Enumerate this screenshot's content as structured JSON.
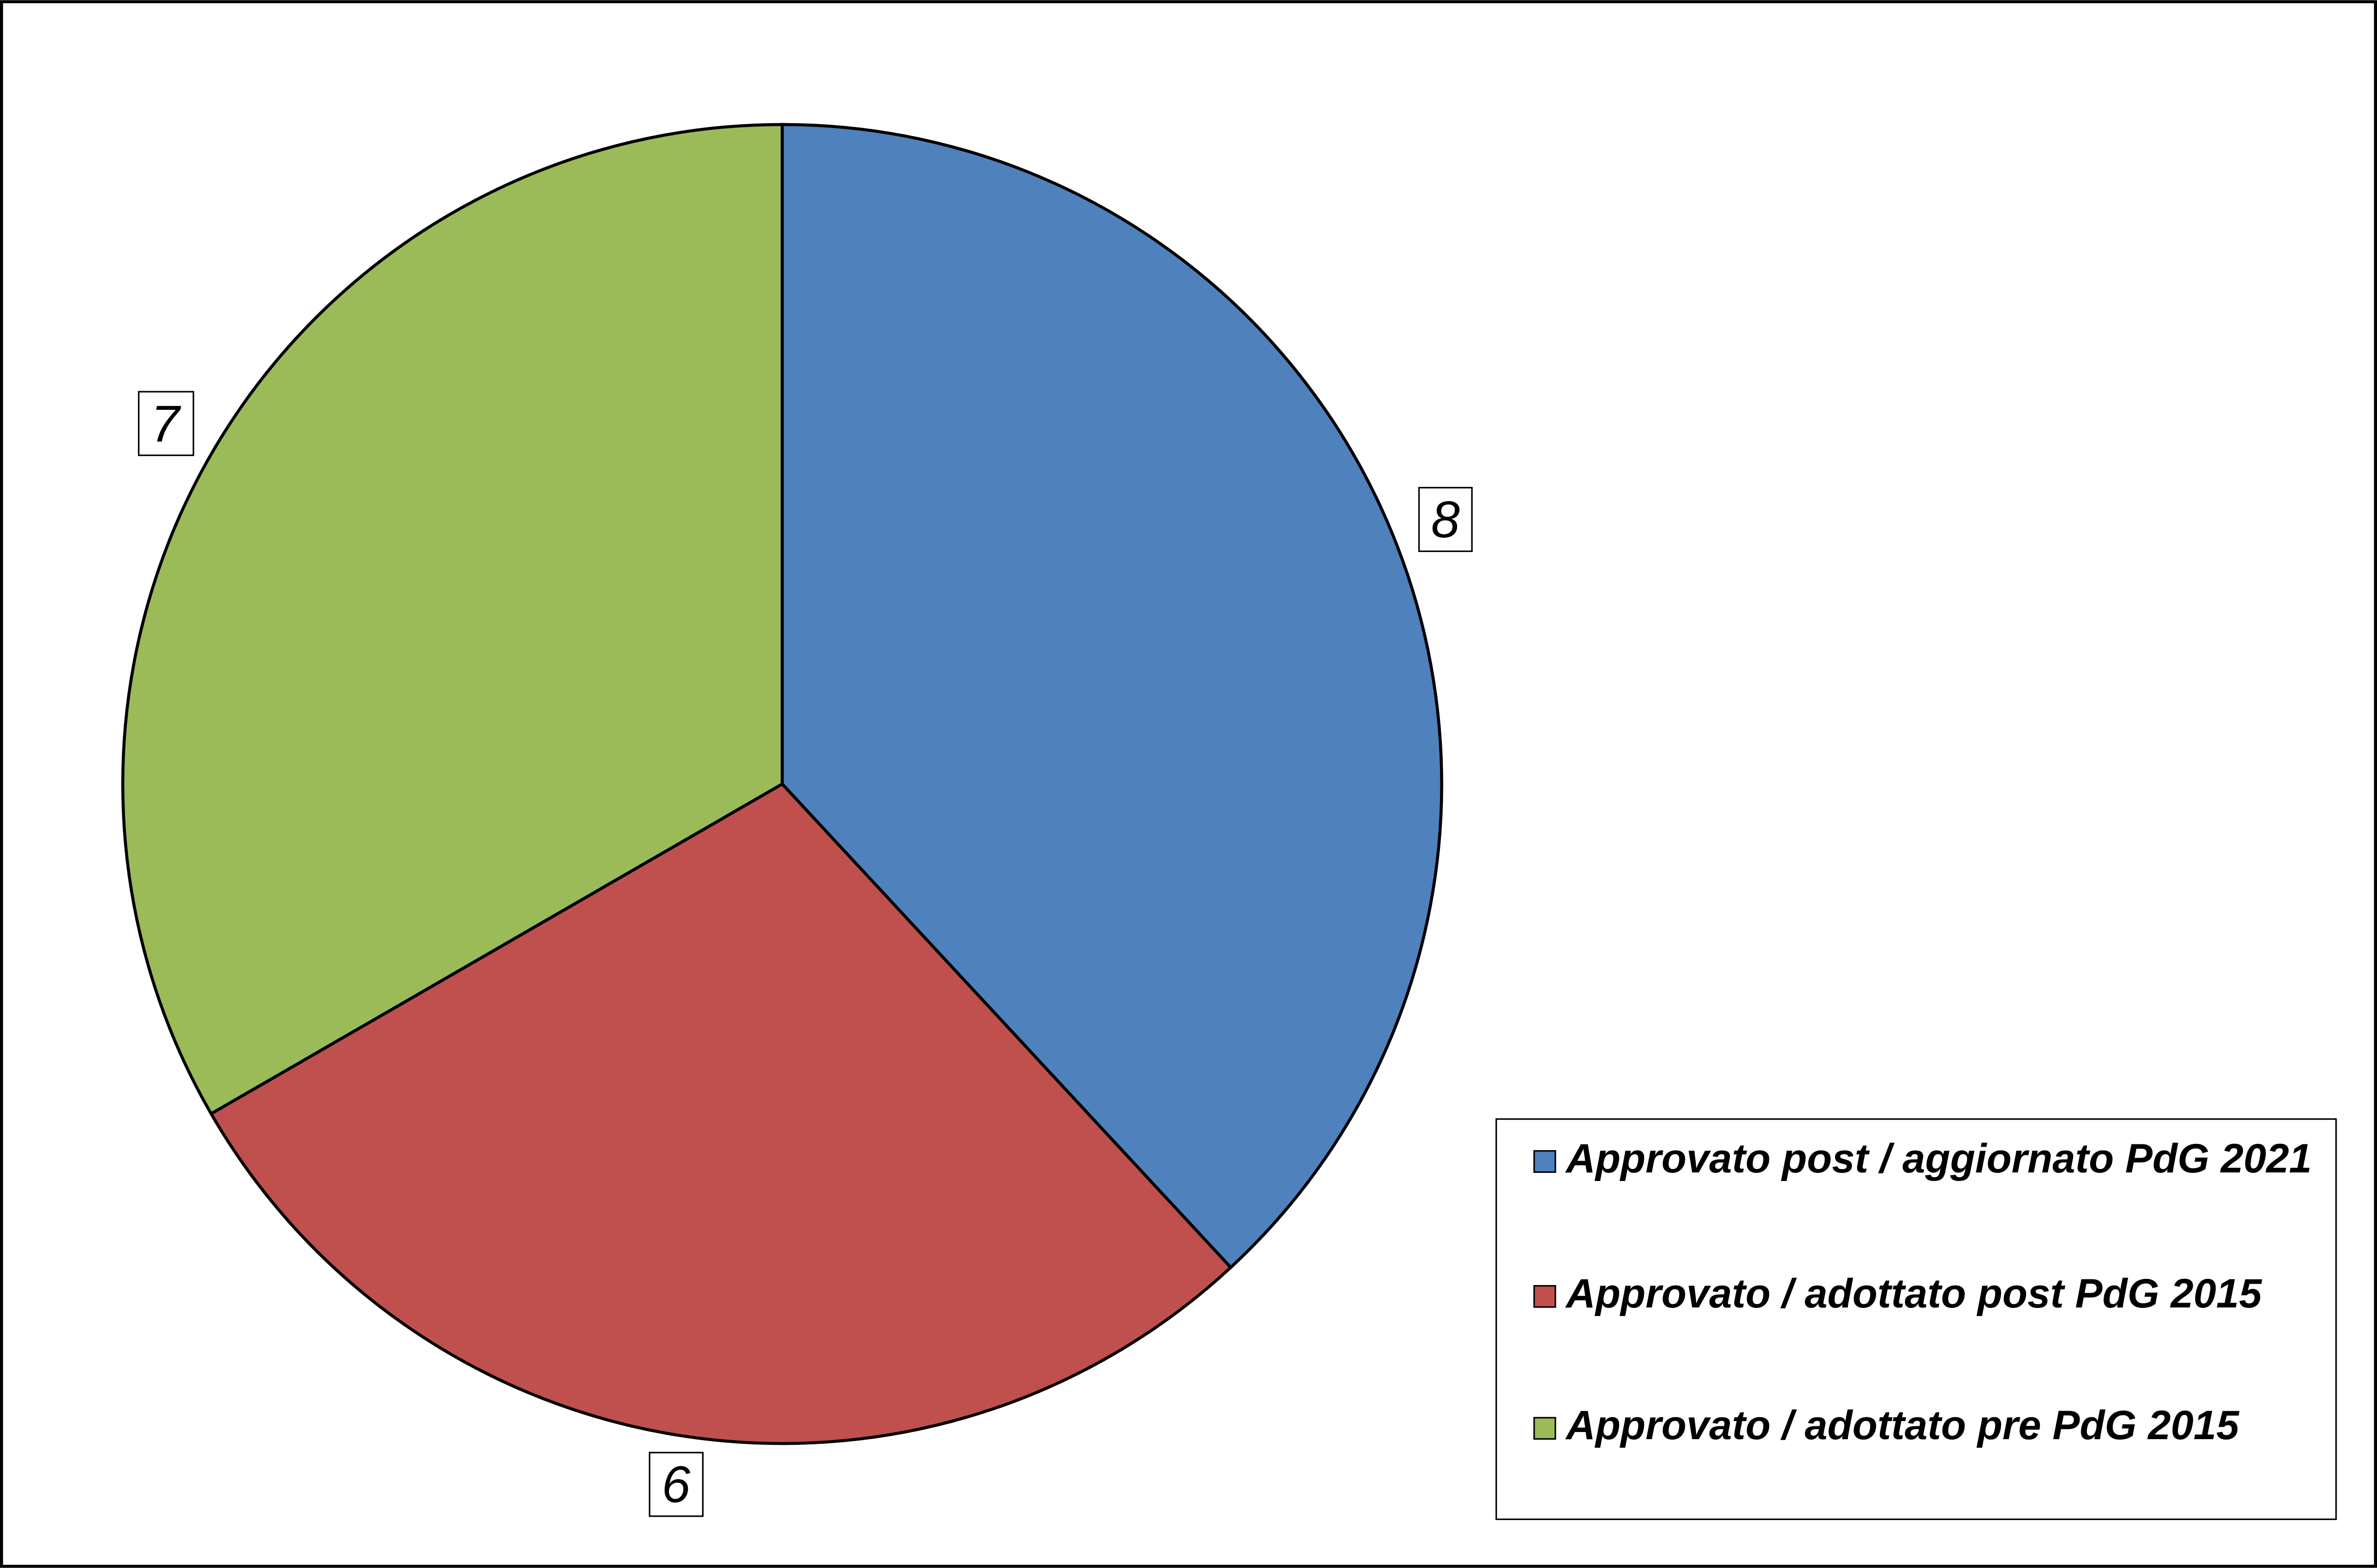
{
  "chart_data": {
    "type": "pie",
    "categories": [
      "Approvato post / aggiornato PdG 2021",
      "Approvato / adottato post PdG 2015",
      "Approvato / adottato pre PdG 2015"
    ],
    "values": [
      8,
      6,
      7
    ],
    "colors": [
      "#4f81bd",
      "#c0504d",
      "#9bbb59"
    ],
    "legend": "lower right"
  }
}
